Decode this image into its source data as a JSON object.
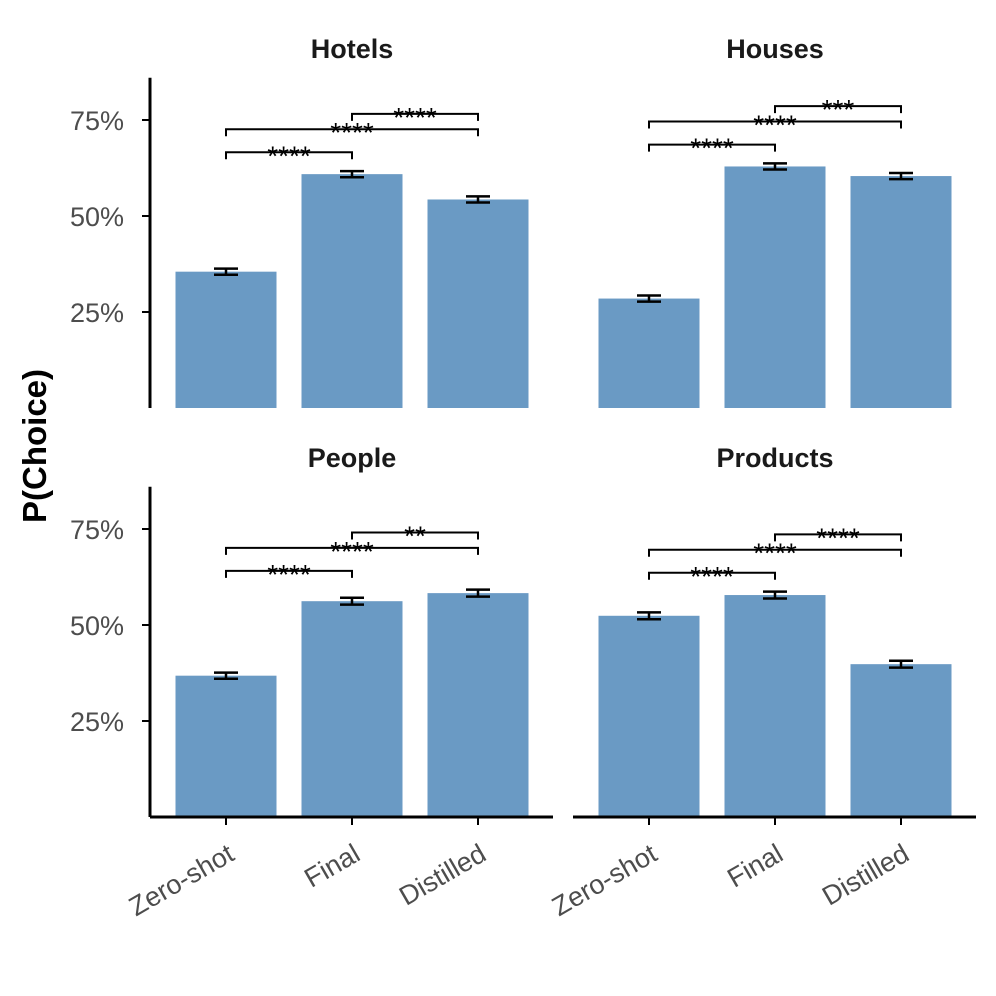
{
  "chart_data": {
    "type": "bar",
    "ylabel": "P(Choice)",
    "xlabel": "",
    "categories": [
      "Zero-shot",
      "Final",
      "Distilled"
    ],
    "ylim": [
      0,
      0.86
    ],
    "yticks": [
      0.25,
      0.5,
      0.75
    ],
    "ytick_labels": [
      "25%",
      "50%",
      "75%"
    ],
    "bar_color": "#6a9ac4",
    "panels": [
      {
        "title": "Hotels",
        "values": [
          0.355,
          0.609,
          0.543
        ],
        "errors": [
          0.008,
          0.008,
          0.008
        ],
        "comparisons": [
          {
            "from": 0,
            "to": 1,
            "label": "****"
          },
          {
            "from": 0,
            "to": 2,
            "label": "****"
          },
          {
            "from": 1,
            "to": 2,
            "label": "****"
          }
        ]
      },
      {
        "title": "Houses",
        "values": [
          0.285,
          0.629,
          0.604
        ],
        "errors": [
          0.008,
          0.008,
          0.008
        ],
        "comparisons": [
          {
            "from": 0,
            "to": 1,
            "label": "****"
          },
          {
            "from": 0,
            "to": 2,
            "label": "****"
          },
          {
            "from": 1,
            "to": 2,
            "label": "***"
          }
        ]
      },
      {
        "title": "People",
        "values": [
          0.368,
          0.562,
          0.583
        ],
        "errors": [
          0.008,
          0.009,
          0.009
        ],
        "comparisons": [
          {
            "from": 0,
            "to": 1,
            "label": "****"
          },
          {
            "from": 0,
            "to": 2,
            "label": "****"
          },
          {
            "from": 1,
            "to": 2,
            "label": "**"
          }
        ]
      },
      {
        "title": "Products",
        "values": [
          0.524,
          0.578,
          0.398
        ],
        "errors": [
          0.009,
          0.009,
          0.009
        ],
        "comparisons": [
          {
            "from": 0,
            "to": 1,
            "label": "****"
          },
          {
            "from": 0,
            "to": 2,
            "label": "****"
          },
          {
            "from": 1,
            "to": 2,
            "label": "****"
          }
        ]
      }
    ]
  }
}
